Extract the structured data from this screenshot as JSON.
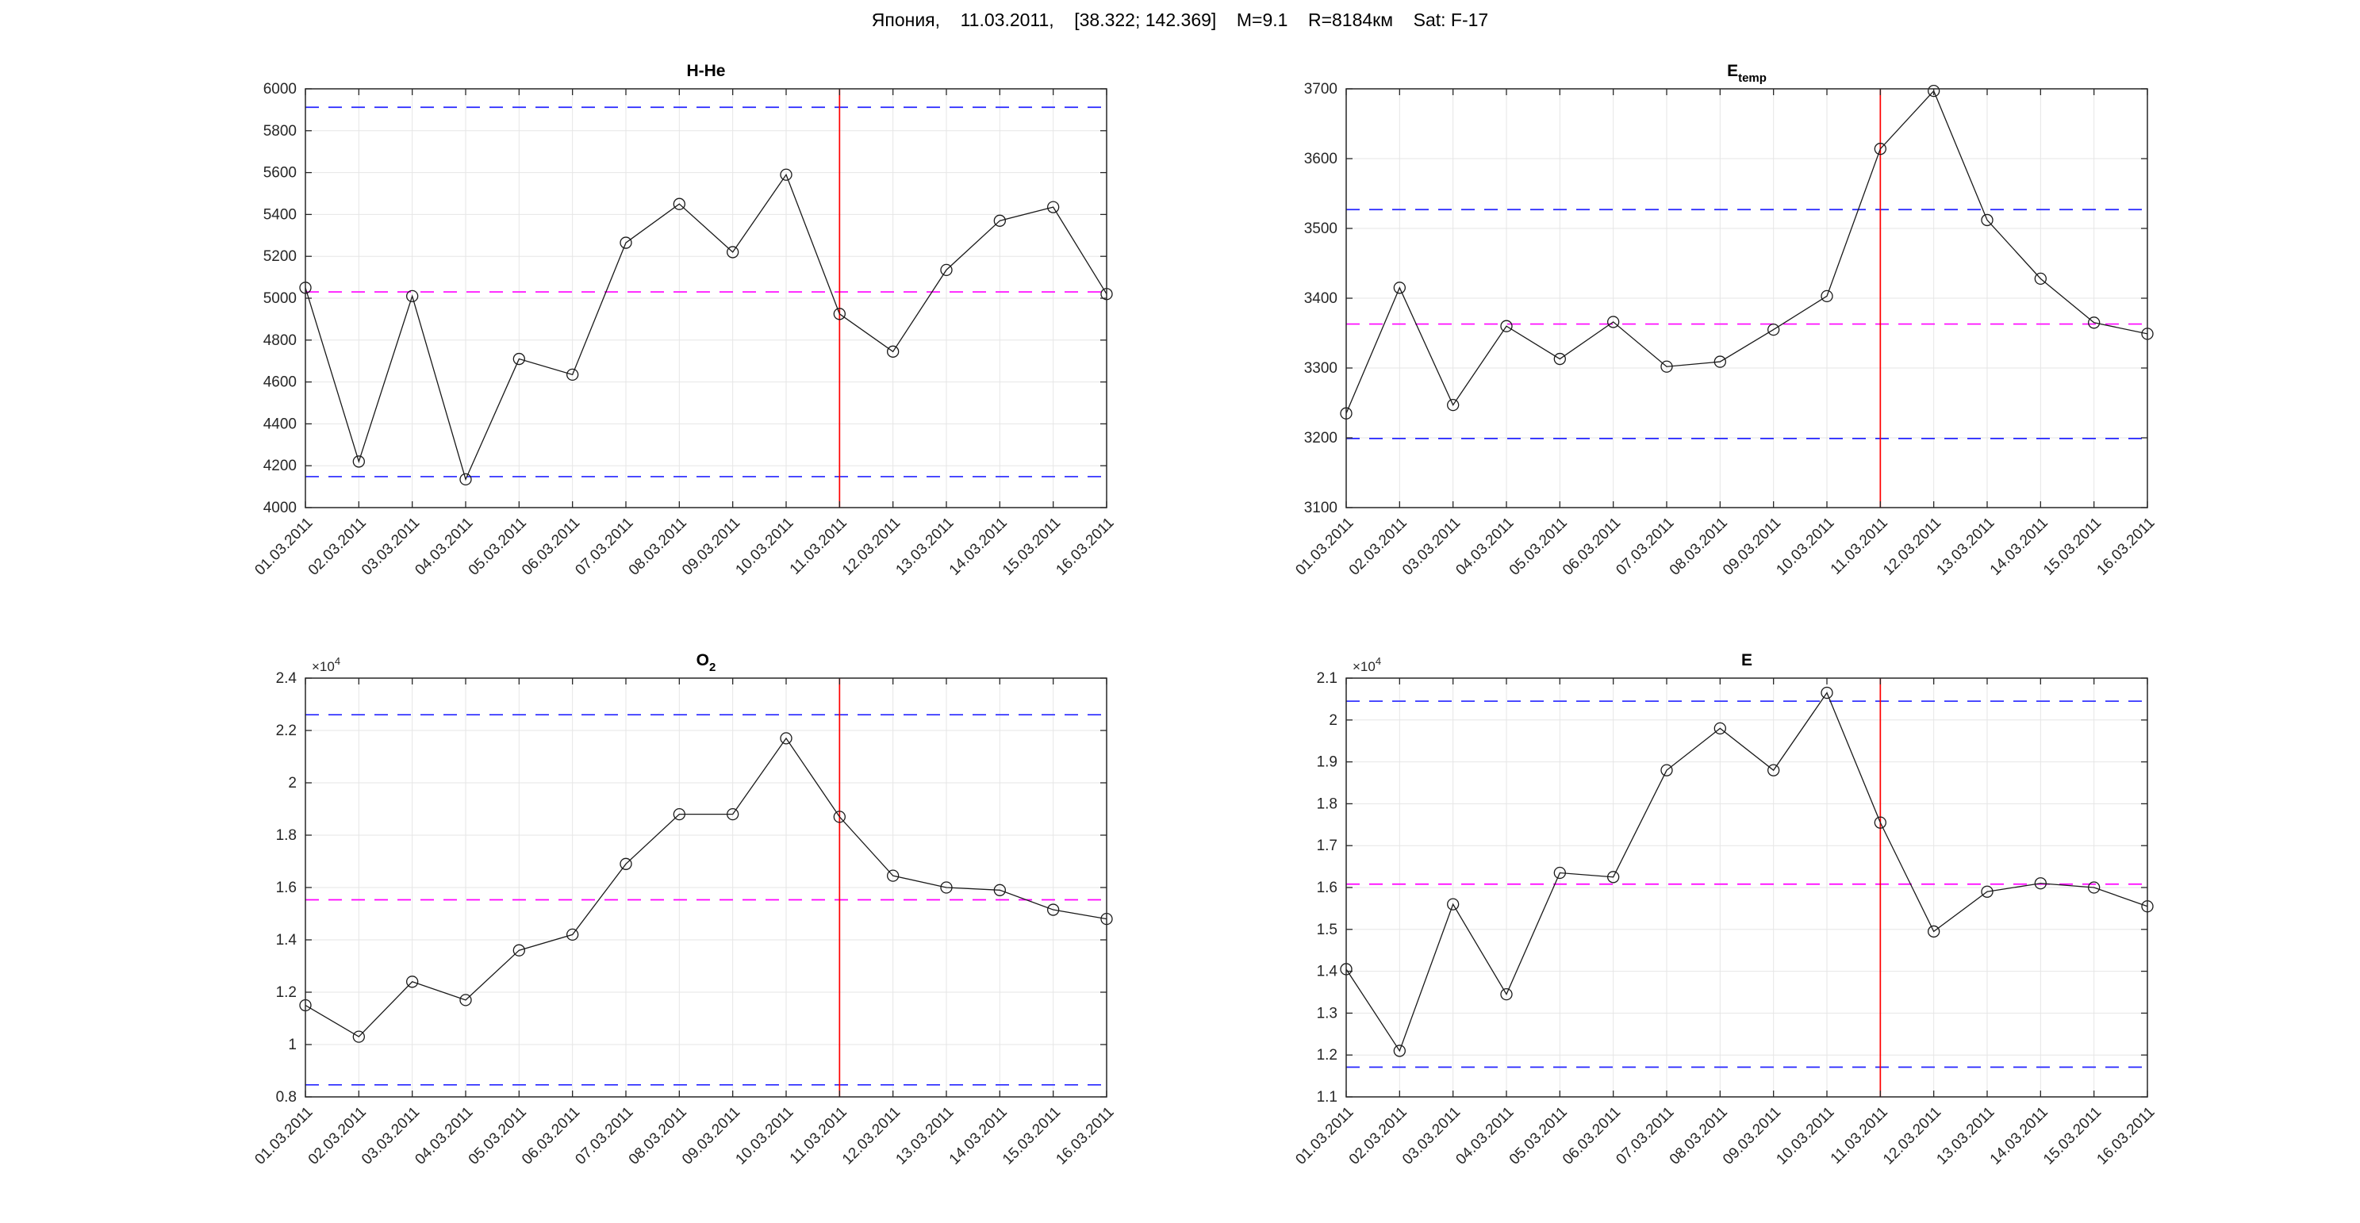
{
  "figure": {
    "title": "Япония,    11.03.2011,    [38.322; 142.369]    M=9.1    R=8184км    Sat: F-17",
    "background": "#ffffff"
  },
  "colors": {
    "series_line": "#1a1a1a",
    "marker_edge": "#1a1a1a",
    "grid": "#e6e6e6",
    "axis": "#262626",
    "tick_label": "#262626",
    "band_line": "#2424ff",
    "mean_line": "#ff00ff",
    "event_line": "#ff0000",
    "title_text": "#000000"
  },
  "dates": [
    "01.03.2011",
    "02.03.2011",
    "03.03.2011",
    "04.03.2011",
    "05.03.2011",
    "06.03.2011",
    "07.03.2011",
    "08.03.2011",
    "09.03.2011",
    "10.03.2011",
    "11.03.2011",
    "12.03.2011",
    "13.03.2011",
    "14.03.2011",
    "15.03.2011",
    "16.03.2011"
  ],
  "event_date": "11.03.2011",
  "event_index": 10,
  "chart_data": [
    {
      "id": "h-he",
      "type": "line",
      "title": {
        "main": "H-He",
        "sub": ""
      },
      "categories": [
        "01.03.2011",
        "02.03.2011",
        "03.03.2011",
        "04.03.2011",
        "05.03.2011",
        "06.03.2011",
        "07.03.2011",
        "08.03.2011",
        "09.03.2011",
        "10.03.2011",
        "11.03.2011",
        "12.03.2011",
        "13.03.2011",
        "14.03.2011",
        "15.03.2011",
        "16.03.2011"
      ],
      "values": [
        5050,
        4220,
        5010,
        4135,
        4710,
        4635,
        5265,
        5450,
        5220,
        5590,
        4925,
        4745,
        5135,
        5370,
        5435,
        5020
      ],
      "ylim": [
        4000,
        6000
      ],
      "yticks": [
        4000,
        4200,
        4400,
        4600,
        4800,
        5000,
        5200,
        5400,
        5600,
        5800,
        6000
      ],
      "ytick_labels": [
        "4000",
        "4200",
        "4400",
        "4600",
        "4800",
        "5000",
        "5200",
        "5400",
        "5600",
        "5800",
        "6000"
      ],
      "exponent_label": null,
      "upper_band": 5912,
      "mean": 5030,
      "lower_band": 4148,
      "event_date": "11.03.2011",
      "grid": true,
      "legend": null
    },
    {
      "id": "e-temp",
      "type": "line",
      "title": {
        "main": "E",
        "sub": "temp"
      },
      "categories": [
        "01.03.2011",
        "02.03.2011",
        "03.03.2011",
        "04.03.2011",
        "05.03.2011",
        "06.03.2011",
        "07.03.2011",
        "08.03.2011",
        "09.03.2011",
        "10.03.2011",
        "11.03.2011",
        "12.03.2011",
        "13.03.2011",
        "14.03.2011",
        "15.03.2011",
        "16.03.2011"
      ],
      "values": [
        3235,
        3415,
        3247,
        3360,
        3313,
        3366,
        3302,
        3309,
        3355,
        3403,
        3614,
        3697,
        3512,
        3428,
        3365,
        3349
      ],
      "ylim": [
        3100,
        3700
      ],
      "yticks": [
        3100,
        3200,
        3300,
        3400,
        3500,
        3600,
        3700
      ],
      "ytick_labels": [
        "3100",
        "3200",
        "3300",
        "3400",
        "3500",
        "3600",
        "3700"
      ],
      "exponent_label": null,
      "upper_band": 3527,
      "mean": 3363,
      "lower_band": 3199,
      "event_date": "11.03.2011",
      "grid": true,
      "legend": null
    },
    {
      "id": "o2",
      "type": "line",
      "title": {
        "main": "O",
        "sub": "2"
      },
      "categories": [
        "01.03.2011",
        "02.03.2011",
        "03.03.2011",
        "04.03.2011",
        "05.03.2011",
        "06.03.2011",
        "07.03.2011",
        "08.03.2011",
        "09.03.2011",
        "10.03.2011",
        "11.03.2011",
        "12.03.2011",
        "13.03.2011",
        "14.03.2011",
        "15.03.2011",
        "16.03.2011"
      ],
      "values": [
        1.15,
        1.03,
        1.24,
        1.17,
        1.36,
        1.42,
        1.69,
        1.88,
        1.88,
        2.17,
        1.87,
        1.645,
        1.6,
        1.59,
        1.515,
        1.48
      ],
      "values_scale": 10000,
      "ylim": [
        0.8,
        2.4
      ],
      "yticks": [
        0.8,
        1,
        1.2,
        1.4,
        1.6,
        1.8,
        2,
        2.2,
        2.4
      ],
      "ytick_labels": [
        "0.8",
        "1",
        "1.2",
        "1.4",
        "1.6",
        "1.8",
        "2",
        "2.2",
        "2.4"
      ],
      "exponent_label": {
        "base": "×10",
        "exp": "4"
      },
      "upper_band": 2.26,
      "mean": 1.553,
      "lower_band": 0.846,
      "event_date": "11.03.2011",
      "grid": true,
      "legend": null
    },
    {
      "id": "e",
      "type": "line",
      "title": {
        "main": "E",
        "sub": ""
      },
      "categories": [
        "01.03.2011",
        "02.03.2011",
        "03.03.2011",
        "04.03.2011",
        "05.03.2011",
        "06.03.2011",
        "07.03.2011",
        "08.03.2011",
        "09.03.2011",
        "10.03.2011",
        "11.03.2011",
        "12.03.2011",
        "13.03.2011",
        "14.03.2011",
        "15.03.2011",
        "16.03.2011"
      ],
      "values": [
        1.405,
        1.21,
        1.56,
        1.345,
        1.635,
        1.625,
        1.88,
        1.98,
        1.88,
        2.065,
        1.755,
        1.495,
        1.59,
        1.61,
        1.6,
        1.555
      ],
      "values_scale": 10000,
      "ylim": [
        1.1,
        2.1
      ],
      "yticks": [
        1.1,
        1.2,
        1.3,
        1.4,
        1.5,
        1.6,
        1.7,
        1.8,
        1.9,
        2,
        2.1
      ],
      "ytick_labels": [
        "1.1",
        "1.2",
        "1.3",
        "1.4",
        "1.5",
        "1.6",
        "1.7",
        "1.8",
        "1.9",
        "2",
        "2.1"
      ],
      "exponent_label": {
        "base": "×10",
        "exp": "4"
      },
      "upper_band": 2.045,
      "mean": 1.608,
      "lower_band": 1.171,
      "event_date": "11.03.2011",
      "grid": true,
      "legend": null
    }
  ]
}
